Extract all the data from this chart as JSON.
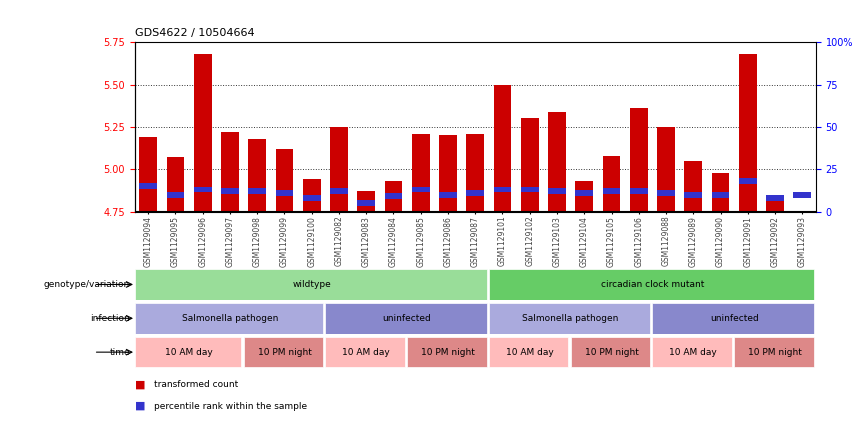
{
  "title": "GDS4622 / 10504664",
  "samples": [
    "GSM1129094",
    "GSM1129095",
    "GSM1129096",
    "GSM1129097",
    "GSM1129098",
    "GSM1129099",
    "GSM1129100",
    "GSM1129082",
    "GSM1129083",
    "GSM1129084",
    "GSM1129085",
    "GSM1129086",
    "GSM1129087",
    "GSM1129101",
    "GSM1129102",
    "GSM1129103",
    "GSM1129104",
    "GSM1129105",
    "GSM1129106",
    "GSM1129088",
    "GSM1129089",
    "GSM1129090",
    "GSM1129091",
    "GSM1129092",
    "GSM1129093"
  ],
  "red_values": [
    5.19,
    5.07,
    5.68,
    5.22,
    5.18,
    5.12,
    4.94,
    5.25,
    4.87,
    4.93,
    5.21,
    5.2,
    5.21,
    5.5,
    5.3,
    5.34,
    4.93,
    5.08,
    5.36,
    5.25,
    5.05,
    4.98,
    5.68,
    4.82,
    4.75
  ],
  "blue_values": [
    15,
    10,
    13,
    12,
    12,
    11,
    8,
    12,
    5,
    9,
    13,
    10,
    11,
    13,
    13,
    12,
    11,
    12,
    12,
    11,
    10,
    10,
    18,
    8,
    10
  ],
  "y_min": 4.75,
  "y_max": 5.75,
  "y_ticks_left": [
    4.75,
    5.0,
    5.25,
    5.5,
    5.75
  ],
  "y_ticks_right": [
    0,
    25,
    50,
    75,
    100
  ],
  "bar_color": "#cc0000",
  "blue_color": "#3333cc",
  "base_value": 4.75,
  "genotype_groups": [
    {
      "label": "wildtype",
      "start": 0,
      "end": 13,
      "color": "#99dd99"
    },
    {
      "label": "circadian clock mutant",
      "start": 13,
      "end": 25,
      "color": "#66cc66"
    }
  ],
  "infection_groups": [
    {
      "label": "Salmonella pathogen",
      "start": 0,
      "end": 7,
      "color": "#aaaadd"
    },
    {
      "label": "uninfected",
      "start": 7,
      "end": 13,
      "color": "#8888cc"
    },
    {
      "label": "Salmonella pathogen",
      "start": 13,
      "end": 19,
      "color": "#aaaadd"
    },
    {
      "label": "uninfected",
      "start": 19,
      "end": 25,
      "color": "#8888cc"
    }
  ],
  "time_groups": [
    {
      "label": "10 AM day",
      "start": 0,
      "end": 4,
      "color": "#ffbbbb"
    },
    {
      "label": "10 PM night",
      "start": 4,
      "end": 7,
      "color": "#dd8888"
    },
    {
      "label": "10 AM day",
      "start": 7,
      "end": 10,
      "color": "#ffbbbb"
    },
    {
      "label": "10 PM night",
      "start": 10,
      "end": 13,
      "color": "#dd8888"
    },
    {
      "label": "10 AM day",
      "start": 13,
      "end": 16,
      "color": "#ffbbbb"
    },
    {
      "label": "10 PM night",
      "start": 16,
      "end": 19,
      "color": "#dd8888"
    },
    {
      "label": "10 AM day",
      "start": 19,
      "end": 22,
      "color": "#ffbbbb"
    },
    {
      "label": "10 PM night",
      "start": 22,
      "end": 25,
      "color": "#dd8888"
    }
  ],
  "row_labels": [
    "genotype/variation",
    "infection",
    "time"
  ],
  "legend_items": [
    {
      "label": "transformed count",
      "color": "#cc0000"
    },
    {
      "label": "percentile rank within the sample",
      "color": "#3333cc"
    }
  ]
}
